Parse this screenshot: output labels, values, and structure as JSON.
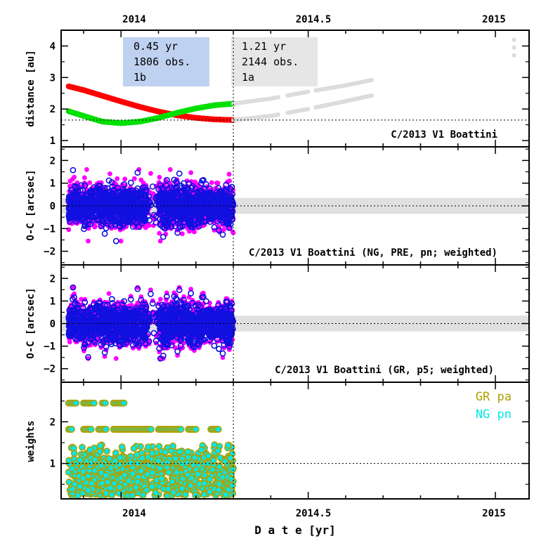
{
  "chart_data": [
    {
      "type": "line",
      "panel": "distance",
      "ylabel": "distance [au]",
      "ylim": [
        0.8,
        4.5
      ],
      "yticks": [
        1,
        2,
        3,
        4
      ],
      "xlim": [
        2013.84,
        2015.09
      ],
      "reference_line_y": 1.65,
      "annotation": "C/2013 V1 Boattini",
      "legend_boxes": [
        {
          "lines": [
            "0.45 yr",
            "1806 obs.",
            "1b"
          ],
          "color": "#bfd1f0"
        },
        {
          "lines": [
            "1.21 yr",
            "2144 obs.",
            "1a"
          ],
          "color": "#e6e6e6"
        }
      ],
      "series": [
        {
          "name": "heliocentric distance (observed arc)",
          "color": "#ff0000",
          "x": [
            2013.86,
            2013.9,
            2013.95,
            2014.0,
            2014.05,
            2014.1,
            2014.15,
            2014.2,
            2014.25,
            2014.3
          ],
          "y": [
            2.72,
            2.6,
            2.42,
            2.24,
            2.07,
            1.92,
            1.8,
            1.72,
            1.67,
            1.65
          ]
        },
        {
          "name": "geocentric distance (observed arc)",
          "color": "#00e000",
          "x": [
            2013.86,
            2013.9,
            2013.95,
            2014.0,
            2014.05,
            2014.1,
            2014.15,
            2014.2,
            2014.25,
            2014.3
          ],
          "y": [
            1.93,
            1.78,
            1.6,
            1.55,
            1.6,
            1.72,
            1.88,
            2.02,
            2.12,
            2.17
          ]
        },
        {
          "name": "distance beyond arc (upper)",
          "color": "#dcdcdc",
          "x": [
            2014.3,
            2014.4,
            2014.5,
            2014.6,
            2014.67
          ],
          "y": [
            2.17,
            2.33,
            2.55,
            2.75,
            2.92
          ]
        },
        {
          "name": "distance beyond arc (lower)",
          "color": "#dcdcdc",
          "x": [
            2014.3,
            2014.4,
            2014.5,
            2014.6,
            2014.67
          ],
          "y": [
            1.65,
            1.78,
            2.0,
            2.25,
            2.43
          ]
        },
        {
          "name": "isolated points",
          "color": "#dcdcdc",
          "x": [
            2015.05,
            2015.05,
            2015.05
          ],
          "y": [
            4.2,
            3.95,
            3.7
          ]
        }
      ]
    },
    {
      "type": "scatter",
      "panel": "residuals NG",
      "ylabel": "O-C [arcsec]",
      "ylim": [
        -2.6,
        2.6
      ],
      "yticks": [
        -2,
        -1,
        0,
        1,
        2
      ],
      "band": [
        -0.35,
        0.35
      ],
      "annotation": "C/2013 V1 Boattini (NG, PRE, pn; weighted)",
      "x_range": [
        2013.86,
        2014.3
      ],
      "series": [
        {
          "name": "RA residuals",
          "color": "#ff00ff",
          "marker": "filled",
          "spread": 0.48
        },
        {
          "name": "Dec residuals",
          "color": "#1010e0",
          "marker": "open",
          "spread": 0.42
        }
      ]
    },
    {
      "type": "scatter",
      "panel": "residuals GR",
      "ylabel": "O-C [arcsec]",
      "ylim": [
        -2.6,
        2.6
      ],
      "yticks": [
        -2,
        -1,
        0,
        1,
        2
      ],
      "band": [
        -0.35,
        0.35
      ],
      "annotation": "C/2013 V1 Boattini (GR, p5; weighted)",
      "x_range": [
        2013.86,
        2014.3
      ],
      "series": [
        {
          "name": "RA residuals",
          "color": "#ff00ff",
          "marker": "filled",
          "spread": 0.5
        },
        {
          "name": "Dec residuals",
          "color": "#1010e0",
          "marker": "open",
          "spread": 0.44
        }
      ]
    },
    {
      "type": "scatter",
      "panel": "weights",
      "ylabel": "weights",
      "ylim": [
        0.15,
        2.95
      ],
      "yticks": [
        1,
        2
      ],
      "reference_line_y": 1.0,
      "xlabel": "D a t e [yr]",
      "x_range": [
        2013.86,
        2014.3
      ],
      "legend": [
        {
          "label": "GR pa",
          "color": "#b0a000"
        },
        {
          "label": "NG pn",
          "color": "#00e8e8"
        }
      ],
      "levels": [
        2.45,
        1.82,
        1.25,
        1.0,
        0.8,
        0.55,
        0.3,
        0.22
      ]
    }
  ],
  "xaxis": {
    "xlim": [
      2013.84,
      2015.09
    ],
    "ticks": [
      2014,
      2014.5,
      2015
    ],
    "tick_labels": [
      "2014",
      "2014.5",
      "2015"
    ],
    "vertical_line_x": 2014.3
  }
}
